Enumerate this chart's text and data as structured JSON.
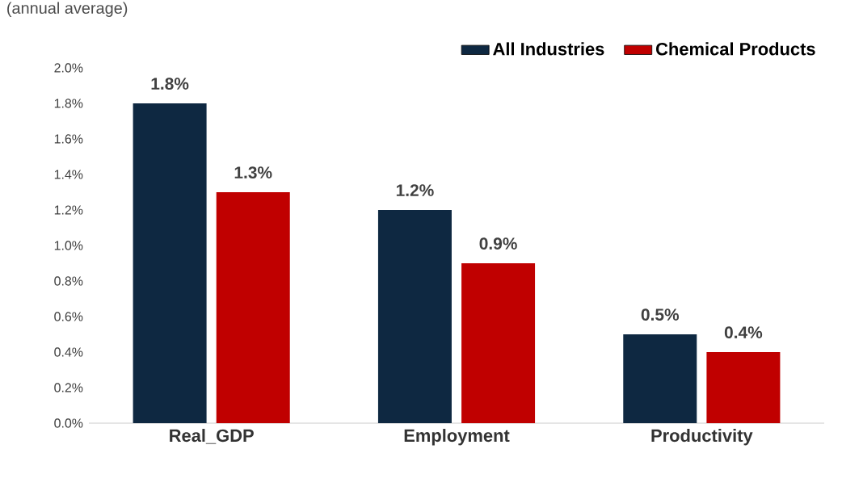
{
  "chart_data": {
    "type": "bar",
    "title": "(annual average)",
    "categories": [
      "Real_GDP",
      "Employment",
      "Productivity"
    ],
    "series": [
      {
        "name": "All Industries",
        "color": "#0e2841",
        "values": [
          1.8,
          1.2,
          0.5
        ],
        "value_labels": [
          "1.8%",
          "1.2%",
          "0.5%"
        ]
      },
      {
        "name": "Chemical Products",
        "color": "#c00000",
        "values": [
          1.3,
          0.9,
          0.4
        ],
        "value_labels": [
          "1.3%",
          "0.9%",
          "0.4%"
        ]
      }
    ],
    "ylim": [
      0,
      2.0
    ],
    "yticks": [
      {
        "value": 0,
        "label": "0.0%"
      },
      {
        "value": 0.2,
        "label": "0.2%"
      },
      {
        "value": 0.4,
        "label": "0.4%"
      },
      {
        "value": 0.6,
        "label": "0.6%"
      },
      {
        "value": 0.8,
        "label": "0.8%"
      },
      {
        "value": 1.0,
        "label": "1.0%"
      },
      {
        "value": 1.2,
        "label": "1.2%"
      },
      {
        "value": 1.4,
        "label": "1.4%"
      },
      {
        "value": 1.6,
        "label": "1.6%"
      },
      {
        "value": 1.8,
        "label": "1.8%"
      },
      {
        "value": 2.0,
        "label": "2.0%"
      }
    ],
    "legend": "top right"
  }
}
